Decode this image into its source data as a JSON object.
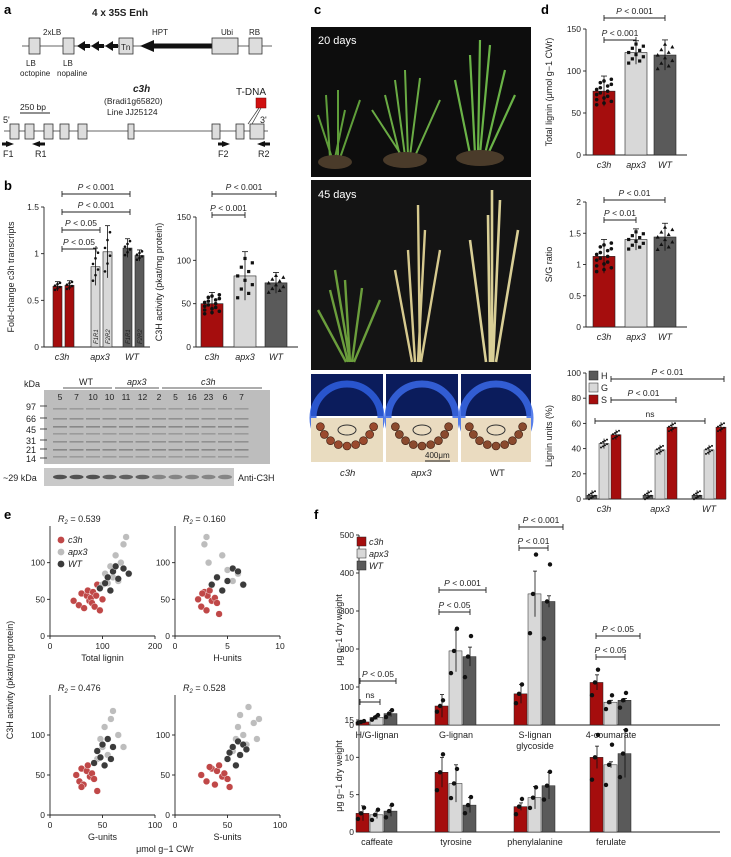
{
  "panel_letters": {
    "a": "a",
    "b": "b",
    "c": "c",
    "d": "d",
    "e": "e",
    "f": "f"
  },
  "colors": {
    "c3h": "#a50d0d",
    "apx3": "#d8d8d8",
    "wt": "#5a5a5a",
    "blue_stain": "#2450c8",
    "pholo_bg": "#e9dcc0",
    "dark": "#1a1a1a"
  },
  "panel_a": {
    "construct_title": "4 x 35S Enh",
    "labels_top": [
      "2xLB",
      "Tn",
      "HPT",
      "Ubi",
      "RB"
    ],
    "labels_bottom": [
      "LB",
      "octopine",
      "LB",
      "nopaline"
    ],
    "gene_name": "c3h",
    "gene_id": "(Bradi1g65820)",
    "line": "Line JJ25124",
    "tdna": "T-DNA",
    "scale": "250 bp",
    "five": "5'",
    "three": "3'",
    "primers": [
      "F1",
      "R1",
      "F2",
      "R2"
    ]
  },
  "chart_data": [
    {
      "id": "b-left",
      "type": "bar",
      "ylabel": "Fold-change c3h transcripts",
      "ylim": [
        0,
        1.5
      ],
      "yticks": [
        0,
        0.5,
        1.0,
        1.5
      ],
      "categories": [
        "c3h",
        "apx3",
        "WT"
      ],
      "bar_labels": [
        "F1R1",
        "F2R2"
      ],
      "bars": [
        {
          "group": "c3h",
          "pair": "F1R1",
          "value": 0.65,
          "err": 0.05
        },
        {
          "group": "c3h",
          "pair": "F2R2",
          "value": 0.66,
          "err": 0.05
        },
        {
          "group": "apx3",
          "pair": "F1R1",
          "value": 0.86,
          "err": 0.2
        },
        {
          "group": "apx3",
          "pair": "F2R2",
          "value": 1.02,
          "err": 0.28
        },
        {
          "group": "WT",
          "pair": "F1R1",
          "value": 1.06,
          "err": 0.1
        },
        {
          "group": "WT",
          "pair": "F2R2",
          "value": 0.98,
          "err": 0.06
        }
      ],
      "annotations": [
        "P < 0.001",
        "P < 0.001",
        "P < 0.05",
        "P < 0.05"
      ]
    },
    {
      "id": "b-right",
      "type": "bar",
      "ylabel": "C3H activity (pkat/mg protein)",
      "ylim": [
        0,
        150
      ],
      "yticks": [
        0,
        50,
        100,
        150
      ],
      "categories": [
        "c3h",
        "apx3",
        "WT"
      ],
      "values": [
        50,
        82,
        74
      ],
      "errors": [
        13,
        28,
        12
      ],
      "annotations": [
        "P < 0.001",
        "P < 0.001"
      ]
    },
    {
      "id": "d-top",
      "type": "bar",
      "ylabel": "Total lignin (μmol g−1 CWr)",
      "ylim": [
        0,
        150
      ],
      "yticks": [
        0,
        50,
        100,
        150
      ],
      "categories": [
        "c3h",
        "apx3",
        "WT"
      ],
      "values": [
        76,
        122,
        119
      ],
      "errors": [
        18,
        14,
        18
      ],
      "annotations": [
        "P < 0.001",
        "P < 0.001"
      ]
    },
    {
      "id": "d-mid",
      "type": "bar",
      "ylabel": "S/G ratio",
      "ylim": [
        0,
        2.0
      ],
      "yticks": [
        0,
        0.5,
        1.0,
        1.5,
        2.0
      ],
      "categories": [
        "c3h",
        "apx3",
        "WT"
      ],
      "values": [
        1.13,
        1.4,
        1.44
      ],
      "errors": [
        0.27,
        0.17,
        0.22
      ],
      "annotations": [
        "P < 0.01",
        "P < 0.01"
      ]
    },
    {
      "id": "d-bottom",
      "type": "bar",
      "ylabel": "Lignin units (%)",
      "ylim": [
        0,
        100
      ],
      "yticks": [
        0,
        20,
        40,
        60,
        80,
        100
      ],
      "categories": [
        "c3h",
        "apx3",
        "WT"
      ],
      "series": [
        {
          "name": "H",
          "values": [
            3,
            3,
            3
          ]
        },
        {
          "name": "G",
          "values": [
            44,
            39,
            39
          ]
        },
        {
          "name": "S",
          "values": [
            51,
            57,
            57
          ]
        }
      ],
      "annotations": [
        "P < 0.01",
        "P < 0.01",
        "ns"
      ]
    },
    {
      "id": "e",
      "type": "scatter",
      "ylabel": "C3H activity (pkat/mg protein)",
      "xlabel": "μmol g−1 CWr",
      "ylim": [
        0,
        150
      ],
      "yticks": [
        0,
        50,
        100
      ],
      "legend": [
        "c3h",
        "apx3",
        "WT"
      ],
      "subplots": [
        {
          "xlabel": "Total lignin",
          "r2": "0.539",
          "xlim": [
            0,
            200
          ],
          "xticks": [
            0,
            100,
            200
          ],
          "points": {
            "c3h": [
              [
                45,
                48
              ],
              [
                55,
                42
              ],
              [
                60,
                58
              ],
              [
                65,
                38
              ],
              [
                70,
                55
              ],
              [
                72,
                62
              ],
              [
                75,
                48
              ],
              [
                78,
                52
              ],
              [
                80,
                45
              ],
              [
                82,
                60
              ],
              [
                85,
                40
              ],
              [
                88,
                55
              ],
              [
                90,
                70
              ],
              [
                95,
                35
              ],
              [
                100,
                50
              ]
            ],
            "apx3": [
              [
                100,
                70
              ],
              [
                105,
                85
              ],
              [
                110,
                72
              ],
              [
                115,
                95
              ],
              [
                120,
                80
              ],
              [
                125,
                110
              ],
              [
                130,
                75
              ],
              [
                135,
                100
              ],
              [
                140,
                125
              ],
              [
                145,
                135
              ]
            ],
            "WT": [
              [
                95,
                65
              ],
              [
                105,
                72
              ],
              [
                110,
                80
              ],
              [
                115,
                62
              ],
              [
                120,
                88
              ],
              [
                125,
                95
              ],
              [
                130,
                78
              ],
              [
                140,
                92
              ],
              [
                150,
                85
              ]
            ]
          }
        },
        {
          "xlabel": "H-units",
          "r2": "0.160",
          "xlim": [
            0,
            10
          ],
          "xticks": [
            0,
            5,
            10
          ],
          "points": {
            "c3h": [
              [
                2.2,
                50
              ],
              [
                2.5,
                40
              ],
              [
                2.8,
                60
              ],
              [
                3.0,
                35
              ],
              [
                3.1,
                55
              ],
              [
                3.3,
                62
              ],
              [
                3.5,
                48
              ],
              [
                3.8,
                52
              ],
              [
                4.0,
                45
              ],
              [
                4.2,
                30
              ],
              [
                2.6,
                58
              ]
            ],
            "apx3": [
              [
                2.8,
                125
              ],
              [
                3.0,
                135
              ],
              [
                3.2,
                100
              ],
              [
                4.0,
                80
              ],
              [
                4.5,
                110
              ],
              [
                5.0,
                90
              ],
              [
                5.5,
                75
              ],
              [
                6.0,
                85
              ]
            ],
            "WT": [
              [
                3.5,
                70
              ],
              [
                4.0,
                80
              ],
              [
                4.5,
                62
              ],
              [
                5.0,
                75
              ],
              [
                5.5,
                92
              ],
              [
                6.0,
                88
              ],
              [
                6.5,
                70
              ]
            ]
          }
        },
        {
          "xlabel": "G-units",
          "r2": "0.476",
          "xlim": [
            0,
            100
          ],
          "xticks": [
            0,
            50,
            100
          ],
          "points": {
            "c3h": [
              [
                25,
                50
              ],
              [
                28,
                42
              ],
              [
                30,
                58
              ],
              [
                32,
                38
              ],
              [
                35,
                55
              ],
              [
                36,
                62
              ],
              [
                38,
                48
              ],
              [
                40,
                52
              ],
              [
                42,
                45
              ],
              [
                45,
                30
              ],
              [
                30,
                35
              ]
            ],
            "apx3": [
              [
                45,
                70
              ],
              [
                48,
                95
              ],
              [
                50,
                85
              ],
              [
                52,
                110
              ],
              [
                55,
                75
              ],
              [
                58,
                120
              ],
              [
                60,
                130
              ],
              [
                65,
                100
              ],
              [
                70,
                85
              ]
            ],
            "WT": [
              [
                42,
                65
              ],
              [
                45,
                80
              ],
              [
                48,
                72
              ],
              [
                50,
                88
              ],
              [
                52,
                62
              ],
              [
                55,
                95
              ],
              [
                58,
                70
              ],
              [
                60,
                85
              ]
            ]
          }
        },
        {
          "xlabel": "S-units",
          "r2": "0.528",
          "xlim": [
            0,
            100
          ],
          "xticks": [
            0,
            50,
            100
          ],
          "points": {
            "c3h": [
              [
                25,
                50
              ],
              [
                30,
                42
              ],
              [
                35,
                58
              ],
              [
                38,
                38
              ],
              [
                40,
                55
              ],
              [
                42,
                62
              ],
              [
                45,
                48
              ],
              [
                47,
                52
              ],
              [
                50,
                45
              ],
              [
                52,
                35
              ],
              [
                33,
                60
              ]
            ],
            "apx3": [
              [
                55,
                80
              ],
              [
                58,
                95
              ],
              [
                60,
                110
              ],
              [
                62,
                125
              ],
              [
                65,
                100
              ],
              [
                68,
                88
              ],
              [
                70,
                135
              ],
              [
                75,
                115
              ],
              [
                78,
                95
              ],
              [
                80,
                120
              ]
            ],
            "WT": [
              [
                50,
                70
              ],
              [
                52,
                78
              ],
              [
                55,
                85
              ],
              [
                58,
                62
              ],
              [
                60,
                92
              ],
              [
                62,
                75
              ],
              [
                65,
                88
              ],
              [
                68,
                82
              ]
            ]
          }
        }
      ]
    },
    {
      "id": "f-top",
      "type": "bar",
      "ylabel": "μg g−1 dry weight",
      "ylim": [
        0,
        500
      ],
      "yticks": [
        0,
        100,
        200,
        300,
        400,
        500
      ],
      "categories": [
        "H/G-lignan",
        "G-lignan",
        "S-lignan glycoside",
        "4-coumarate"
      ],
      "series": [
        {
          "name": "c3h",
          "values": [
            8,
            50,
            82,
            112
          ]
        },
        {
          "name": "apx3",
          "values": [
            20,
            195,
            345,
            60
          ]
        },
        {
          "name": "WT",
          "values": [
            30,
            180,
            325,
            65
          ]
        }
      ],
      "errors": [
        [
          3,
          6,
          8
        ],
        [
          30,
          55,
          25
        ],
        [
          25,
          60,
          15
        ],
        [
          20,
          5,
          5
        ]
      ],
      "annotations": [
        "ns",
        "P < 0.05",
        "P < 0.05",
        "P < 0.001",
        "P < 0.01",
        "P < 0.001",
        "P < 0.05",
        "P < 0.05"
      ]
    },
    {
      "id": "f-bottom",
      "type": "bar",
      "ylabel": "μg g−1 dry weight",
      "ylim": [
        0,
        15
      ],
      "yticks": [
        0,
        5,
        10,
        15
      ],
      "categories": [
        "caffeate",
        "tyrosine",
        "phenylalanine",
        "ferulate"
      ],
      "series": [
        {
          "name": "c3h",
          "values": [
            2.5,
            8,
            3.4,
            10
          ]
        },
        {
          "name": "apx3",
          "values": [
            2.3,
            6.5,
            4.6,
            9
          ]
        },
        {
          "name": "WT",
          "values": [
            2.8,
            3.6,
            6.2,
            10.5
          ]
        }
      ],
      "errors": [
        [
          1,
          0.5,
          0.7
        ],
        [
          2,
          2.5,
          1.0
        ],
        [
          0.5,
          1.5,
          1.8
        ],
        [
          1.5,
          0.4,
          3.2
        ]
      ]
    }
  ],
  "panel_b_blot": {
    "kda": "kDa",
    "markers": [
      "97",
      "66",
      "45",
      "31",
      "21",
      "14"
    ],
    "group_labels": [
      "WT",
      "apx3",
      "c3h"
    ],
    "lanes": [
      "5",
      "7",
      "10",
      "10",
      "11",
      "12",
      "2",
      "5",
      "16",
      "23",
      "6",
      "7"
    ],
    "band_label": "~29 kDa",
    "antibody": "Anti-C3H"
  },
  "panel_c": {
    "days_top": "20 days",
    "days_mid": "45 days",
    "scale": "400μm",
    "labels": [
      "c3h",
      "apx3",
      "WT"
    ]
  },
  "panel_e": {
    "r2_prefix": "R",
    "r2_sub": "2",
    "eq": " = "
  }
}
